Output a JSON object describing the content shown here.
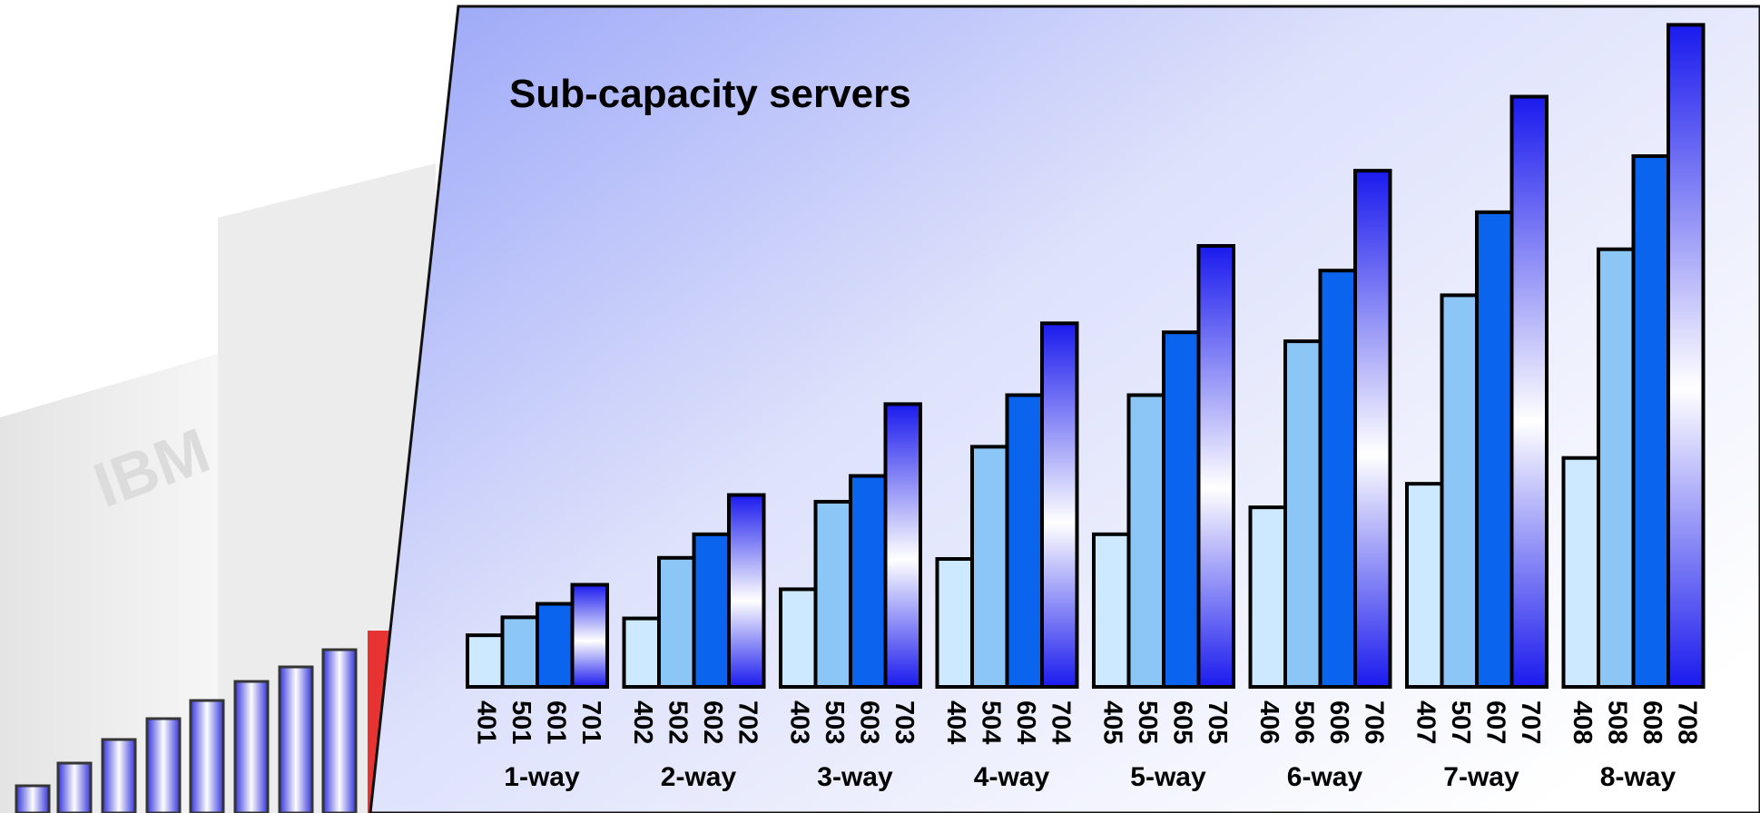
{
  "chart_data": {
    "type": "bar",
    "title": "Sub-capacity servers",
    "categories": [
      "1-way",
      "2-way",
      "3-way",
      "4-way",
      "5-way",
      "6-way",
      "7-way",
      "8-way"
    ],
    "ylim": [
      0,
      600
    ],
    "series": [
      {
        "color": "#cce9ff",
        "labels": [
          "401",
          "402",
          "403",
          "404",
          "405",
          "406",
          "407",
          "408"
        ],
        "values": [
          46,
          61,
          87,
          114,
          136,
          160,
          181,
          204
        ]
      },
      {
        "color": "#8cc6f6",
        "labels": [
          "501",
          "502",
          "503",
          "504",
          "505",
          "506",
          "507",
          "508"
        ],
        "values": [
          62,
          115,
          165,
          214,
          260,
          308,
          349,
          390
        ]
      },
      {
        "color": "#0a64ee",
        "labels": [
          "601",
          "602",
          "603",
          "604",
          "605",
          "606",
          "607",
          "608"
        ],
        "values": [
          74,
          136,
          188,
          260,
          316,
          371,
          423,
          473
        ]
      },
      {
        "color": "#1a1aee",
        "labels": [
          "701",
          "702",
          "703",
          "704",
          "705",
          "706",
          "707",
          "708"
        ],
        "values": [
          91,
          171,
          252,
          324,
          393,
          460,
          526,
          590
        ]
      }
    ]
  }
}
